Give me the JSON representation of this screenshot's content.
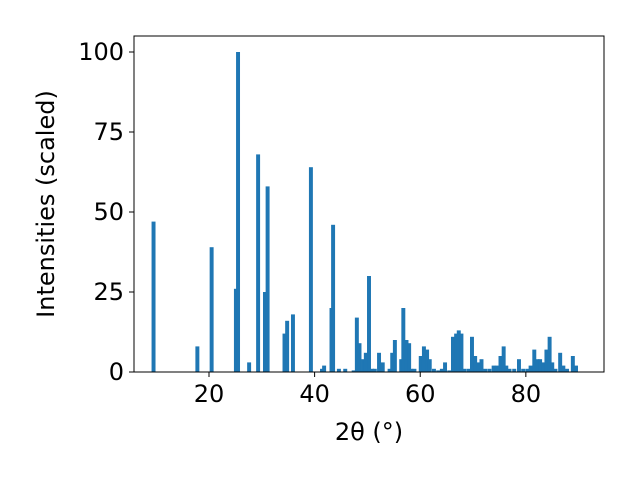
{
  "chart_data": {
    "type": "bar",
    "title": "",
    "xlabel": "2θ (°)",
    "ylabel": "Intensities (scaled)",
    "xlim": [
      5.8,
      94.8
    ],
    "ylim": [
      0,
      105
    ],
    "xticks": [
      20,
      40,
      60,
      80
    ],
    "yticks": [
      0,
      25,
      50,
      75,
      100
    ],
    "grid": false,
    "bar_color": "#1f77b4",
    "bar_width": 0.75,
    "x": [
      9.5,
      17.8,
      20.5,
      25.1,
      25.5,
      27.6,
      29.3,
      30.6,
      31.1,
      34.3,
      34.8,
      35.9,
      39.3,
      41.4,
      41.8,
      43.2,
      43.5,
      44.6,
      45.8,
      47.4,
      48.0,
      48.5,
      49.2,
      49.7,
      50.3,
      50.9,
      51.4,
      52.2,
      52.9,
      54.2,
      54.7,
      55.2,
      56.4,
      56.8,
      57.4,
      57.9,
      58.3,
      58.9,
      60.1,
      60.7,
      61.3,
      61.8,
      62.6,
      63.4,
      64.1,
      64.7,
      65.5,
      66.2,
      66.8,
      67.3,
      67.8,
      68.3,
      69.1,
      69.8,
      70.4,
      71.1,
      71.6,
      72.3,
      73.1,
      73.9,
      74.5,
      75.2,
      75.8,
      76.3,
      76.9,
      77.8,
      78.7,
      79.5,
      80.3,
      80.9,
      81.6,
      82.2,
      82.7,
      83.3,
      83.9,
      84.5,
      85.0,
      85.6,
      86.5,
      87.1,
      87.8,
      88.9,
      89.5
    ],
    "values": [
      47,
      8,
      39,
      26,
      100,
      3,
      68,
      25,
      58,
      12,
      16,
      18,
      64,
      1,
      2,
      20,
      46,
      1,
      1,
      0.5,
      17,
      9,
      4,
      6,
      30,
      1,
      1,
      6,
      3,
      1,
      6,
      10,
      4,
      20,
      10,
      9,
      1,
      1,
      5,
      8,
      7,
      4,
      1,
      0.5,
      1,
      3,
      0.5,
      11,
      12,
      13,
      12,
      1,
      1,
      11,
      5,
      3,
      4,
      1,
      1,
      2,
      2,
      5,
      8,
      2,
      1,
      1,
      4,
      1,
      1,
      2,
      7,
      4,
      4,
      3,
      7,
      11,
      3,
      1,
      6,
      2,
      1,
      5,
      2
    ]
  }
}
